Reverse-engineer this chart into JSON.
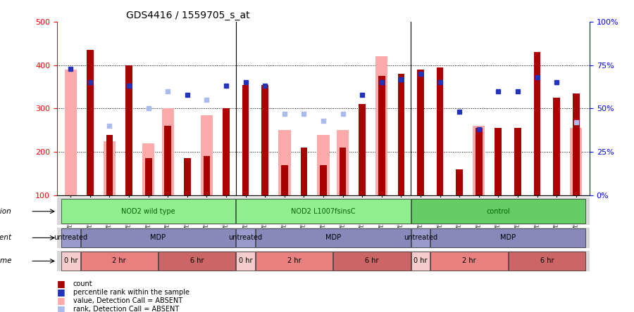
{
  "title": "GDS4416 / 1559705_s_at",
  "samples": [
    "GSM560855",
    "GSM560856",
    "GSM560857",
    "GSM560864",
    "GSM560865",
    "GSM560866",
    "GSM560873",
    "GSM560874",
    "GSM560875",
    "GSM560858",
    "GSM560859",
    "GSM560860",
    "GSM560867",
    "GSM560868",
    "GSM560869",
    "GSM560876",
    "GSM560877",
    "GSM560878",
    "GSM560861",
    "GSM560862",
    "GSM560863",
    "GSM560870",
    "GSM560871",
    "GSM560872",
    "GSM560879",
    "GSM560880",
    "GSM560881"
  ],
  "count_values": [
    390,
    435,
    240,
    400,
    185,
    260,
    185,
    190,
    300,
    355,
    355,
    170,
    210,
    170,
    210,
    310,
    375,
    380,
    390,
    395,
    160,
    255,
    255,
    255,
    430,
    325,
    335
  ],
  "count_absent": [
    true,
    false,
    false,
    false,
    false,
    false,
    false,
    false,
    false,
    false,
    false,
    false,
    false,
    false,
    false,
    false,
    false,
    false,
    false,
    false,
    false,
    false,
    false,
    false,
    false,
    false,
    false
  ],
  "rank_values": [
    73,
    65,
    40,
    63,
    50,
    60,
    58,
    55,
    63,
    65,
    63,
    47,
    47,
    43,
    47,
    58,
    65,
    67,
    70,
    65,
    48,
    38,
    60,
    60,
    68,
    65,
    42
  ],
  "rank_absent": [
    false,
    false,
    true,
    false,
    true,
    true,
    false,
    true,
    false,
    false,
    false,
    true,
    true,
    true,
    true,
    false,
    false,
    false,
    false,
    false,
    false,
    false,
    false,
    false,
    false,
    false,
    true
  ],
  "value_absent": [
    390,
    0,
    225,
    0,
    220,
    300,
    0,
    285,
    0,
    0,
    0,
    250,
    0,
    240,
    250,
    0,
    420,
    0,
    0,
    0,
    0,
    260,
    0,
    0,
    0,
    0,
    255
  ],
  "genotype_groups": [
    {
      "label": "NOD2 wild type",
      "start": 0,
      "end": 8,
      "color": "#90EE90"
    },
    {
      "label": "NOD2 L1007fsinsC",
      "start": 9,
      "end": 17,
      "color": "#90EE90"
    },
    {
      "label": "control",
      "start": 18,
      "end": 26,
      "color": "#66CC66"
    }
  ],
  "agent_groups": [
    {
      "label": "untreated",
      "start": 0,
      "end": 0,
      "color": "#9999CC"
    },
    {
      "label": "MDP",
      "start": 1,
      "end": 8,
      "color": "#8888BB"
    },
    {
      "label": "untreated",
      "start": 9,
      "end": 9,
      "color": "#9999CC"
    },
    {
      "label": "MDP",
      "start": 10,
      "end": 17,
      "color": "#8888BB"
    },
    {
      "label": "untreated",
      "start": 18,
      "end": 18,
      "color": "#9999CC"
    },
    {
      "label": "MDP",
      "start": 19,
      "end": 26,
      "color": "#8888BB"
    }
  ],
  "time_groups": [
    {
      "label": "0 hr",
      "start": 0,
      "end": 0,
      "color": "#F4CCCC"
    },
    {
      "label": "2 hr",
      "start": 1,
      "end": 4,
      "color": "#E88080"
    },
    {
      "label": "6 hr",
      "start": 5,
      "end": 8,
      "color": "#CC6666"
    },
    {
      "label": "0 hr",
      "start": 9,
      "end": 9,
      "color": "#F4CCCC"
    },
    {
      "label": "2 hr",
      "start": 10,
      "end": 13,
      "color": "#E88080"
    },
    {
      "label": "6 hr",
      "start": 14,
      "end": 17,
      "color": "#CC6666"
    },
    {
      "label": "0 hr",
      "start": 18,
      "end": 18,
      "color": "#F4CCCC"
    },
    {
      "label": "2 hr",
      "start": 19,
      "end": 22,
      "color": "#E88080"
    },
    {
      "label": "6 hr",
      "start": 23,
      "end": 26,
      "color": "#CC6666"
    }
  ],
  "ylim_left": [
    100,
    500
  ],
  "ylim_right": [
    0,
    100
  ],
  "yticks_left": [
    100,
    200,
    300,
    400,
    500
  ],
  "yticks_right": [
    0,
    25,
    50,
    75,
    100
  ],
  "bar_width": 0.35,
  "count_color": "#AA0000",
  "count_absent_color": "#FFAAAA",
  "rank_color": "#2233BB",
  "rank_absent_color": "#AABBEE",
  "bg_color": "#FFFFFF",
  "plot_bg_color": "#FFFFFF",
  "gridline_values": [
    200,
    300,
    400
  ],
  "separators": [
    8.5,
    17.5
  ]
}
